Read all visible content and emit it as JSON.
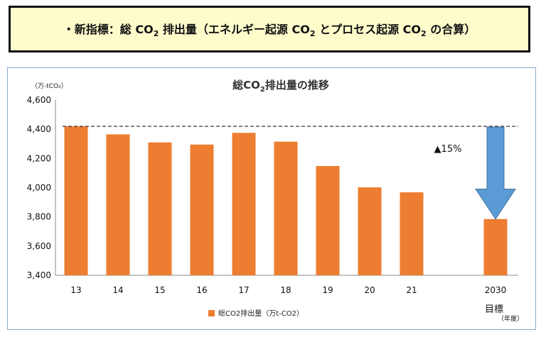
{
  "banner": {
    "prefix": "・新指標：総 CO",
    "sub1": "2",
    "mid1": " 排出量（エネルギー起源 CO",
    "sub2": "2",
    "mid2": " とプロセス起源 CO",
    "sub3": "2",
    "suffix": " の合算）"
  },
  "chart_data": {
    "type": "bar",
    "title": "総CO2排出量の推移",
    "title_main": "総CO",
    "title_sub": "2",
    "title_rest": "排出量の推移",
    "ylabel": "（万-tCO₂）",
    "xunit": "（年度）",
    "target_label": "目標",
    "categories": [
      "13",
      "14",
      "15",
      "16",
      "17",
      "18",
      "19",
      "20",
      "21",
      "2030"
    ],
    "series": [
      {
        "name": "総CO2排出量（万t-CO2）",
        "values": [
          4420,
          4365,
          4310,
          4295,
          4375,
          4315,
          4148,
          4002,
          3968,
          3785
        ]
      }
    ],
    "ylim": [
      3400,
      4600
    ],
    "yticks": [
      "3,400",
      "3,600",
      "3,800",
      "4,000",
      "4,200",
      "4,400",
      "4,600"
    ],
    "ytick_values": [
      3400,
      3600,
      3800,
      4000,
      4200,
      4400,
      4600
    ],
    "reference_line": 4420,
    "annotation": "▲15%",
    "bar_color": "#ed7d31",
    "arrow_color": "#5b9bd5",
    "grid": false,
    "legend_position": "bottom"
  }
}
